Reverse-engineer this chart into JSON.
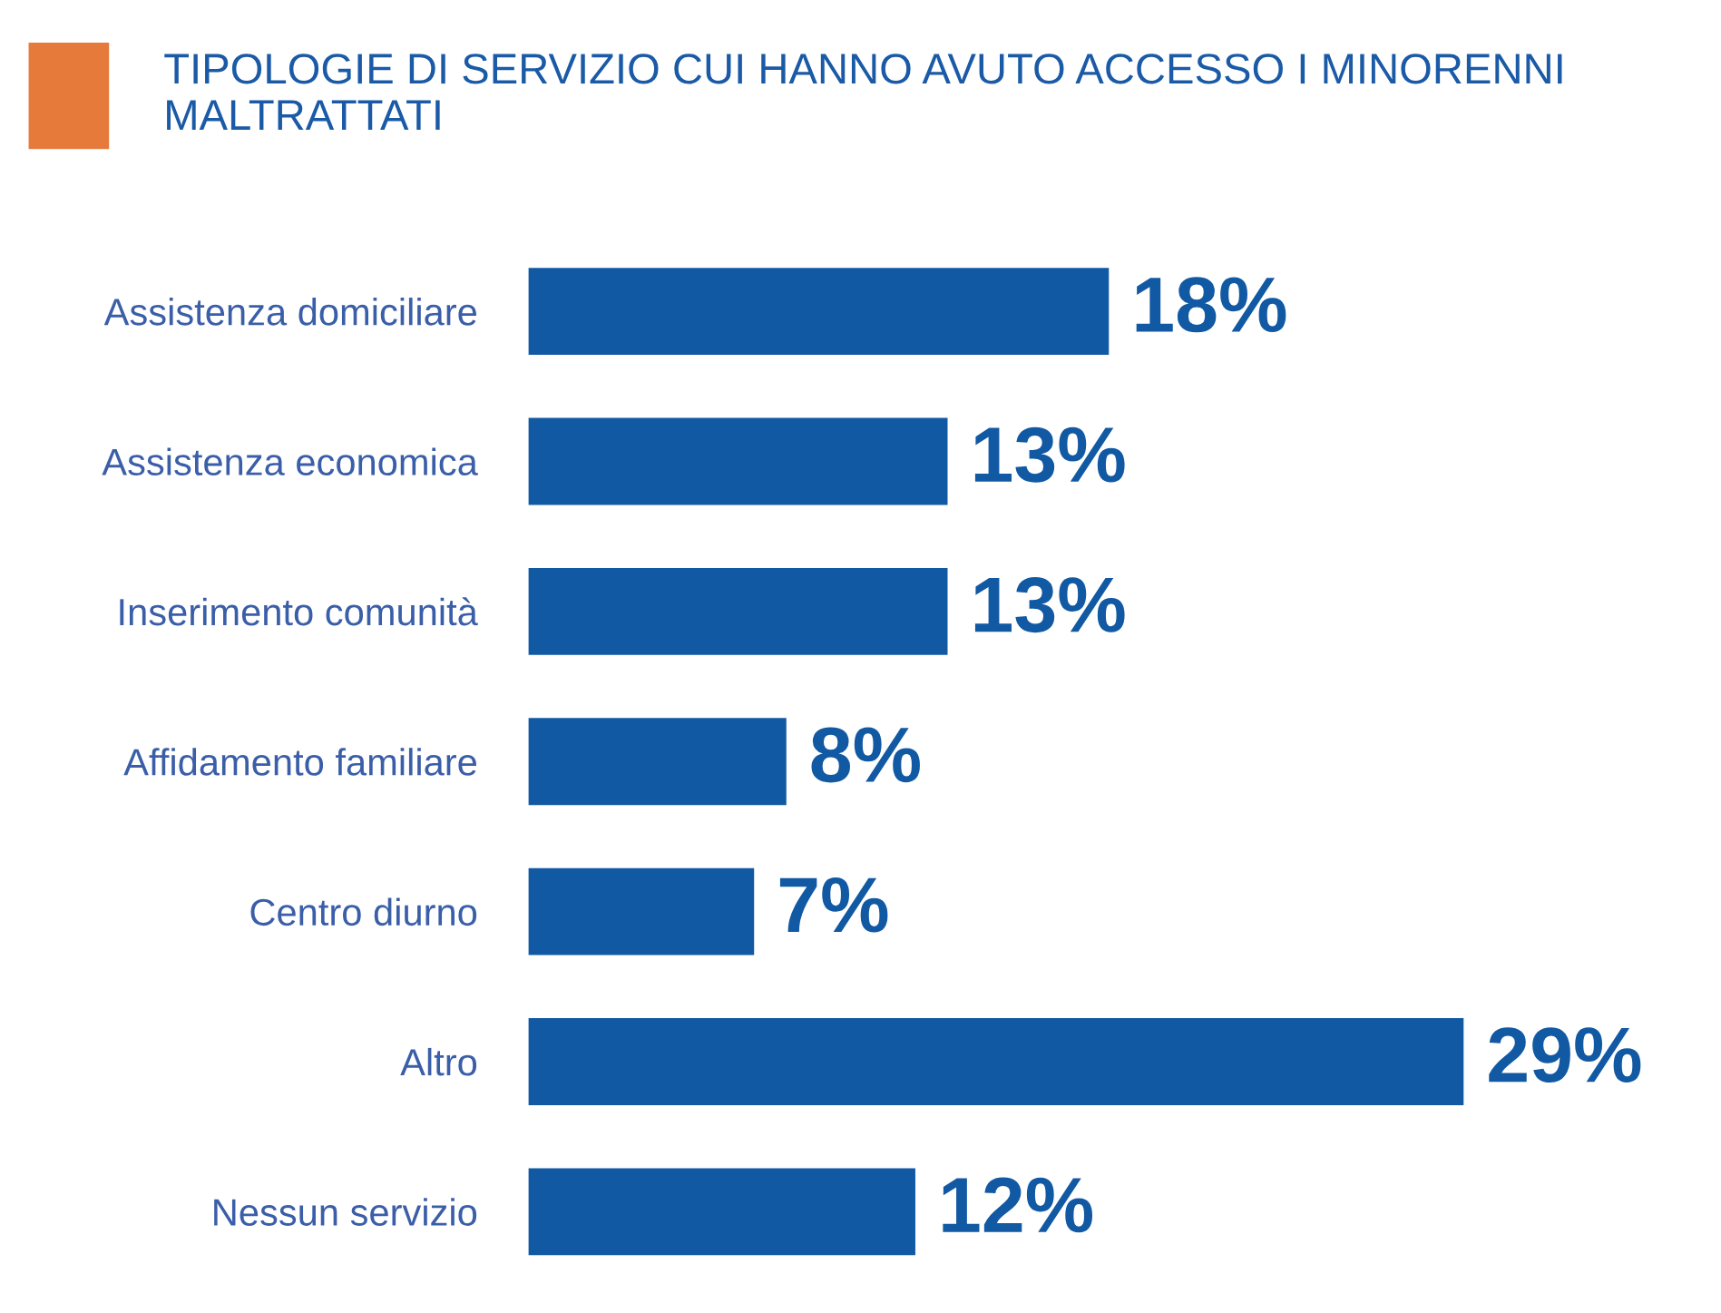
{
  "chart_data": {
    "type": "bar",
    "orientation": "horizontal",
    "title": "TIPOLOGIE DI SERVIZIO CUI HANNO AVUTO ACCESSO I MINORENNI MALTRATTATI",
    "categories": [
      "Assistenza domiciliare",
      "Assistenza economica",
      "Inserimento comunità",
      "Affidamento familiare",
      "Centro diurno",
      "Altro",
      "Nessun servizio"
    ],
    "values": [
      18,
      13,
      13,
      8,
      7,
      29,
      12
    ],
    "value_labels": [
      "18%",
      "13%",
      "13%",
      "8%",
      "7%",
      "29%",
      "12%"
    ],
    "color": "#1259a4"
  }
}
